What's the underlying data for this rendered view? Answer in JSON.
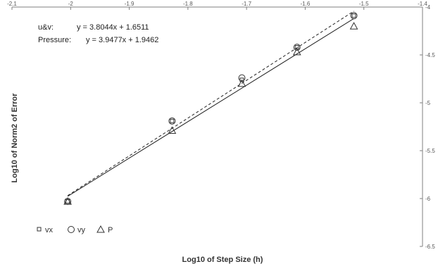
{
  "chart_data": {
    "type": "scatter",
    "title": "",
    "xlabel": "Log10 of Step Size (h)",
    "ylabel": "Log10 of Norm2 of Error",
    "xlim": [
      -2.1,
      -1.4
    ],
    "ylim": [
      -6.5,
      -4
    ],
    "x_ticks": [
      -2.1,
      -2,
      -1.9,
      -1.8,
      -1.7,
      -1.6,
      -1.5,
      -1.4
    ],
    "x_tick_labels": [
      "-2.1",
      "-2",
      "-1.9",
      "-1.8",
      "-1.7",
      "-1.6",
      "-1.5",
      "-1.4"
    ],
    "y_ticks": [
      -4,
      -4.5,
      -5,
      -5.5,
      -6,
      -6.5
    ],
    "y_tick_labels": [
      "-4",
      "-4.5",
      "-5",
      "-5.5",
      "-6",
      "-6.5"
    ],
    "x_axis_position": "top",
    "y_axis_position": "right",
    "grid": false,
    "legend_position": "bottom-left",
    "series": [
      {
        "name": "vx",
        "marker": "square",
        "points": [
          [
            -2.005,
            -6.03
          ],
          [
            -1.827,
            -5.19
          ],
          [
            -1.708,
            -4.76
          ],
          [
            -1.614,
            -4.42
          ],
          [
            -1.517,
            -4.09
          ]
        ]
      },
      {
        "name": "vy",
        "marker": "circle",
        "points": [
          [
            -2.005,
            -6.03
          ],
          [
            -1.827,
            -5.19
          ],
          [
            -1.708,
            -4.74
          ],
          [
            -1.614,
            -4.42
          ],
          [
            -1.517,
            -4.09
          ]
        ]
      },
      {
        "name": "P",
        "marker": "triangle",
        "points": [
          [
            -2.005,
            -6.03
          ],
          [
            -1.827,
            -5.29
          ],
          [
            -1.708,
            -4.8
          ],
          [
            -1.614,
            -4.47
          ],
          [
            -1.517,
            -4.2
          ]
        ]
      }
    ],
    "trendlines": [
      {
        "label": "u&v:",
        "equation": "y = 3.8044x + 1.6511",
        "slope": 3.8044,
        "intercept": 1.6511,
        "style": "solid",
        "x_range": [
          -2.005,
          -1.517
        ]
      },
      {
        "label": "Pressure:",
        "equation": "y = 3.9477x + 1.9462",
        "slope": 3.9477,
        "intercept": 1.9462,
        "style": "dashed",
        "x_range": [
          -2.005,
          -1.517
        ]
      }
    ]
  }
}
